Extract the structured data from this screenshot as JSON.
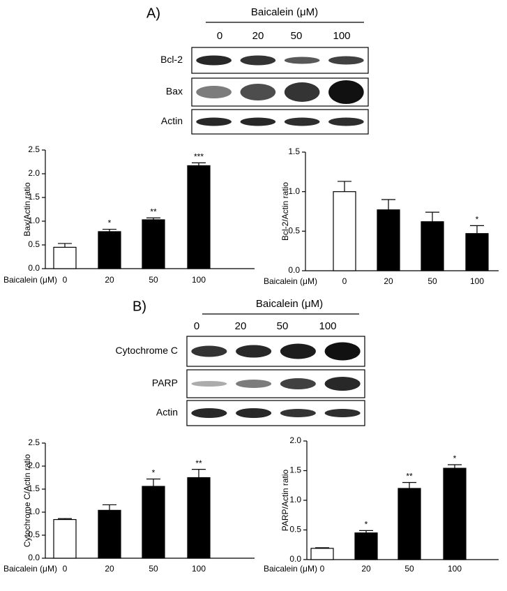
{
  "blots": [
    {
      "label": "A)",
      "treatment": "Baicalein (μM)",
      "doses": [
        "0",
        "20",
        "50",
        "100"
      ],
      "rows": [
        "Bcl-2",
        "Bax",
        "Actin"
      ]
    },
    {
      "label": "B)",
      "treatment": "Baicalein (μM)",
      "doses": [
        "0",
        "20",
        "50",
        "100"
      ],
      "rows": [
        "Cytochrome C",
        "PARP",
        "Actin"
      ]
    }
  ],
  "chart_data": [
    {
      "type": "bar",
      "ylabel": "Bax/Actin ratio",
      "xlabel": "Baicalein (μM)",
      "categories": [
        "0",
        "20",
        "50",
        "100"
      ],
      "values": [
        0.45,
        0.78,
        1.03,
        2.17
      ],
      "errors": [
        0.08,
        0.05,
        0.04,
        0.06
      ],
      "annotations": [
        null,
        "*",
        "**",
        "***"
      ],
      "colors": [
        "#ffffff",
        "#000000",
        "#000000",
        "#000000"
      ],
      "ylim": [
        0,
        2.5
      ],
      "yticks": [
        {
          "value": 0,
          "label": "0.0"
        },
        0.5,
        {
          "value": 1,
          "label": "1.0"
        },
        1.5,
        {
          "value": 2,
          "label": "2.0"
        },
        2.5
      ]
    },
    {
      "type": "bar",
      "ylabel": "Bcl-2/Actin ratio",
      "xlabel": "Baicalein (μM)",
      "categories": [
        "0",
        "20",
        "50",
        "100"
      ],
      "values": [
        1.0,
        0.77,
        0.62,
        0.47
      ],
      "errors": [
        0.13,
        0.13,
        0.12,
        0.1
      ],
      "annotations": [
        null,
        null,
        null,
        "*"
      ],
      "colors": [
        "#ffffff",
        "#000000",
        "#000000",
        "#000000"
      ],
      "ylim": [
        0,
        1.5
      ],
      "yticks": [
        {
          "value": 0,
          "label": "0.0"
        },
        0.5,
        {
          "value": 1,
          "label": "1.0"
        },
        1.5
      ]
    },
    {
      "type": "bar",
      "ylabel": "Cytochrome C/Actin ratio",
      "xlabel": "Baicalein (μM)",
      "categories": [
        "0",
        "20",
        "50",
        "100"
      ],
      "values": [
        0.84,
        1.04,
        1.56,
        1.75
      ],
      "errors": [
        0.02,
        0.12,
        0.16,
        0.18
      ],
      "annotations": [
        null,
        null,
        "*",
        "**"
      ],
      "colors": [
        "#ffffff",
        "#000000",
        "#000000",
        "#000000"
      ],
      "ylim": [
        0,
        2.5
      ],
      "yticks": [
        {
          "value": 0,
          "label": "0.0"
        },
        0.5,
        {
          "value": 1,
          "label": "1.0"
        },
        1.5,
        {
          "value": 2,
          "label": "2.0"
        },
        2.5
      ]
    },
    {
      "type": "bar",
      "ylabel": "PARP/Actin ratio",
      "xlabel": "Baicalein (μM)",
      "categories": [
        "0",
        "20",
        "50",
        "100"
      ],
      "values": [
        0.19,
        0.45,
        1.2,
        1.54
      ],
      "errors": [
        0.01,
        0.04,
        0.1,
        0.06
      ],
      "annotations": [
        null,
        "*",
        "**",
        "*"
      ],
      "colors": [
        "#ffffff",
        "#000000",
        "#000000",
        "#000000"
      ],
      "ylim": [
        0,
        2.0
      ],
      "yticks": [
        {
          "value": 0,
          "label": "0.0"
        },
        0.5,
        {
          "value": 1,
          "label": "1.0"
        },
        1.5,
        {
          "value": 2,
          "label": "2.0"
        }
      ]
    }
  ]
}
